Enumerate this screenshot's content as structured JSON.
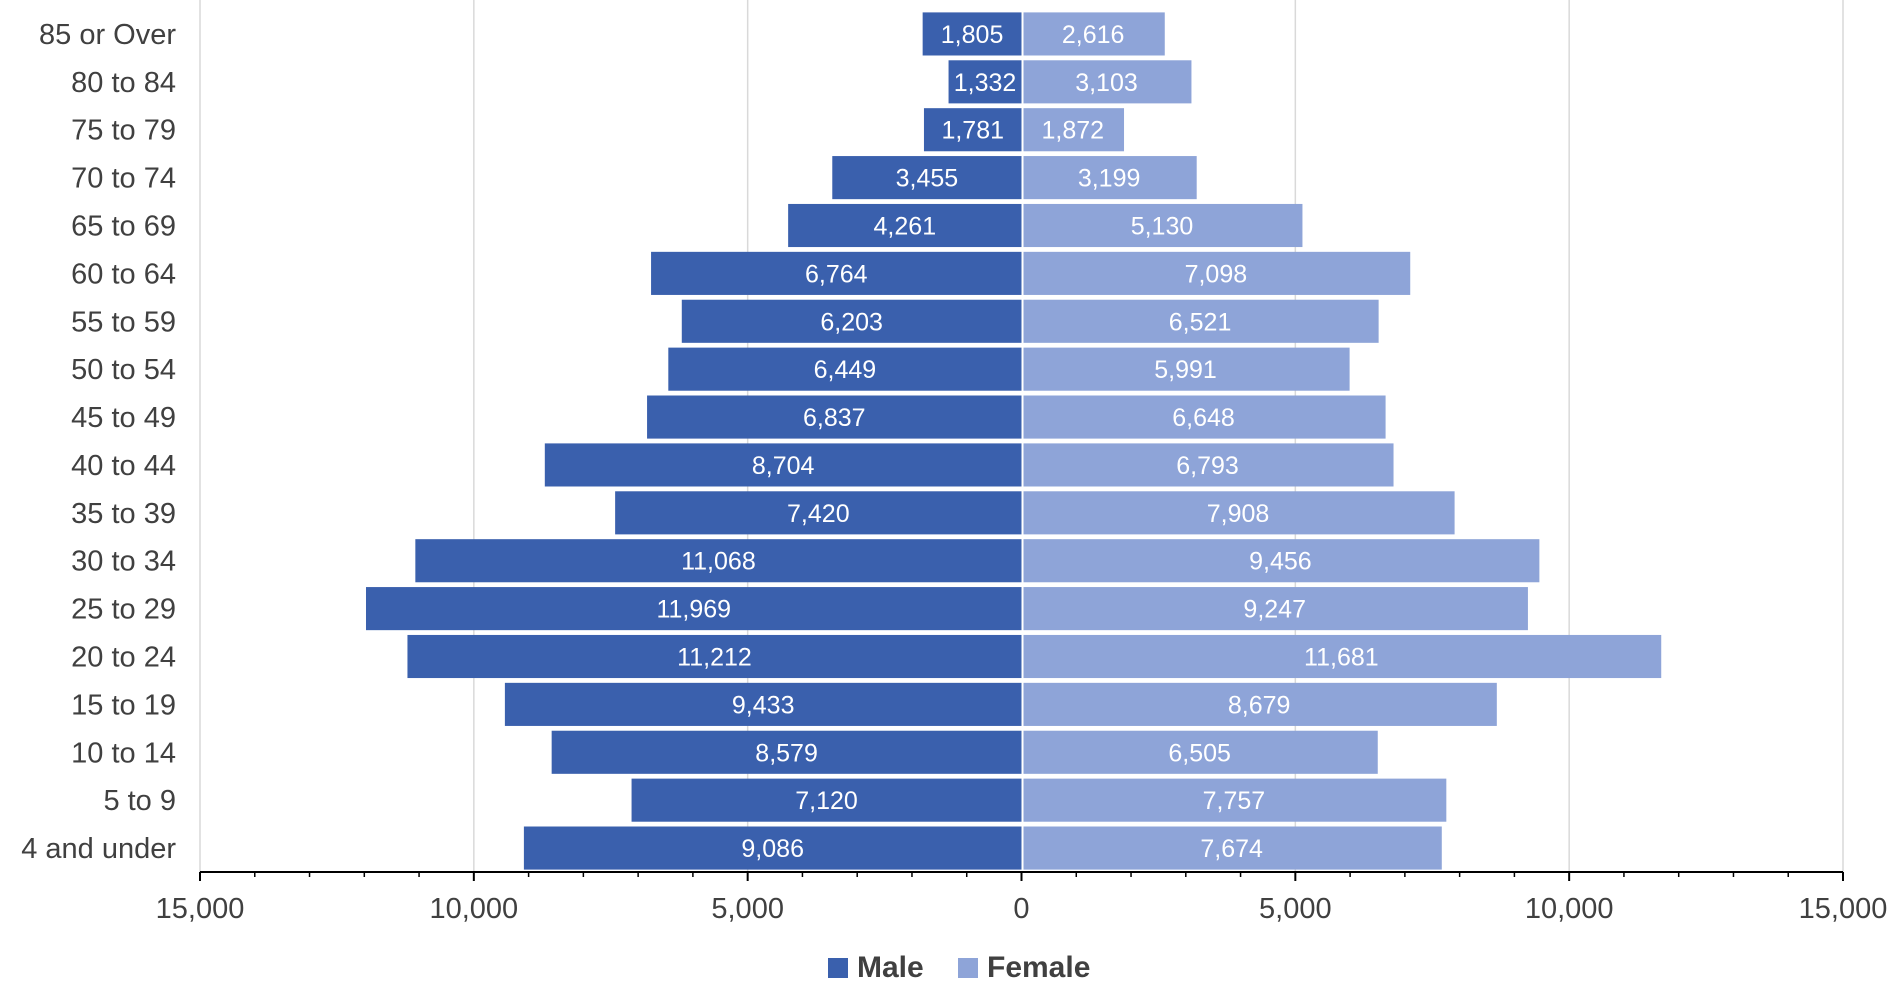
{
  "chart_data": {
    "type": "bar",
    "orientation": "horizontal",
    "subtype": "population-pyramid",
    "categories": [
      "85 or Over",
      "80 to 84",
      "75 to 79",
      "70 to 74",
      "65 to 69",
      "60 to 64",
      "55 to 59",
      "50 to 54",
      "45 to 49",
      "40 to 44",
      "35 to 39",
      "30 to 34",
      "25 to 29",
      "20 to 24",
      "15 to 19",
      "10 to 14",
      "5 to 9",
      "4 and under"
    ],
    "series": [
      {
        "name": "Male",
        "color": "#3a60ad",
        "values": [
          1805,
          1332,
          1781,
          3455,
          4261,
          6764,
          6203,
          6449,
          6837,
          8704,
          7420,
          11068,
          11969,
          11212,
          9433,
          8579,
          7120,
          9086
        ],
        "labels": [
          "1,805",
          "1,332",
          "1,781",
          "3,455",
          "4,261",
          "6,764",
          "6,203",
          "6,449",
          "6,837",
          "8,704",
          "7,420",
          "11,068",
          "11,969",
          "11,212",
          "9,433",
          "8,579",
          "7,120",
          "9,086"
        ]
      },
      {
        "name": "Female",
        "color": "#8ea4d8",
        "values": [
          2616,
          3103,
          1872,
          3199,
          5130,
          7098,
          6521,
          5991,
          6648,
          6793,
          7908,
          9456,
          9247,
          11681,
          8679,
          6505,
          7757,
          7674
        ],
        "labels": [
          "2,616",
          "3,103",
          "1,872",
          "3,199",
          "5,130",
          "7,098",
          "6,521",
          "5,991",
          "6,648",
          "6,793",
          "7,908",
          "9,456",
          "9,247",
          "11,681",
          "8,679",
          "6,505",
          "7,757",
          "7,674"
        ]
      }
    ],
    "xlim": [
      -15000,
      15000
    ],
    "ticks": [
      -15000,
      -10000,
      -5000,
      0,
      5000,
      10000,
      15000
    ],
    "tick_labels": [
      "15,000",
      "10,000",
      "5,000",
      "0",
      "5,000",
      "10,000",
      "15,000"
    ],
    "grid": true,
    "legend": "bottom-center",
    "title": "",
    "xlabel": "",
    "ylabel": ""
  }
}
